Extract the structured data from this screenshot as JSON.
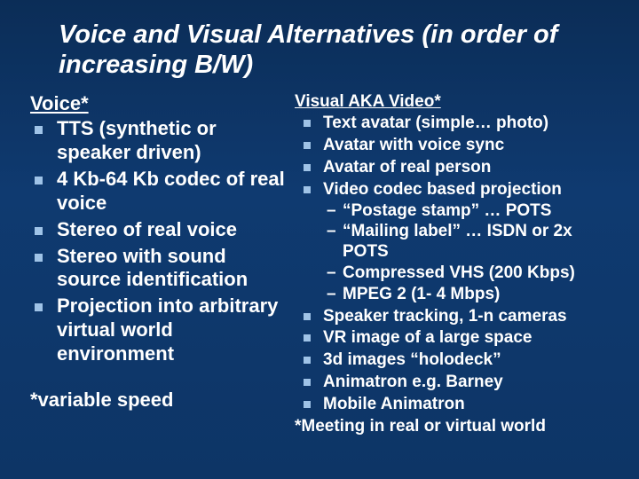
{
  "title": "Voice and Visual Alternatives (in order of increasing B/W)",
  "left": {
    "heading": "Voice*",
    "items": [
      "TTS (synthetic or speaker driven)",
      "4 Kb-64 Kb codec of real voice",
      "Stereo of real voice",
      "Stereo with sound source identification",
      "Projection into arbitrary virtual world environment"
    ],
    "footnote": "*variable speed"
  },
  "right": {
    "heading": "Visual AKA Video*",
    "items": [
      {
        "text": "Text avatar (simple… photo)"
      },
      {
        "text": "Avatar with voice sync"
      },
      {
        "text": "Avatar of real person"
      },
      {
        "text": "Video codec based projection",
        "sub": [
          "“Postage stamp” … POTS",
          "“Mailing label” … ISDN or 2x POTS",
          "Compressed VHS (200 Kbps)",
          "MPEG 2 (1- 4 Mbps)"
        ]
      },
      {
        "text": "Speaker tracking, 1-n cameras"
      },
      {
        "text": "VR image of a large space"
      },
      {
        "text": "3d images “holodeck”"
      },
      {
        "text": "Animatron e.g. Barney"
      },
      {
        "text": "Mobile Animatron"
      }
    ],
    "footnote": "*Meeting in real or virtual world"
  },
  "style": {
    "bg_top": "#0b2d57",
    "bg_bottom": "#0d3566",
    "bullet_color": "#9fc3e7",
    "text_color": "#ffffff",
    "title_fontsize": 29,
    "left_body_fontsize": 22,
    "right_body_fontsize": 19
  }
}
